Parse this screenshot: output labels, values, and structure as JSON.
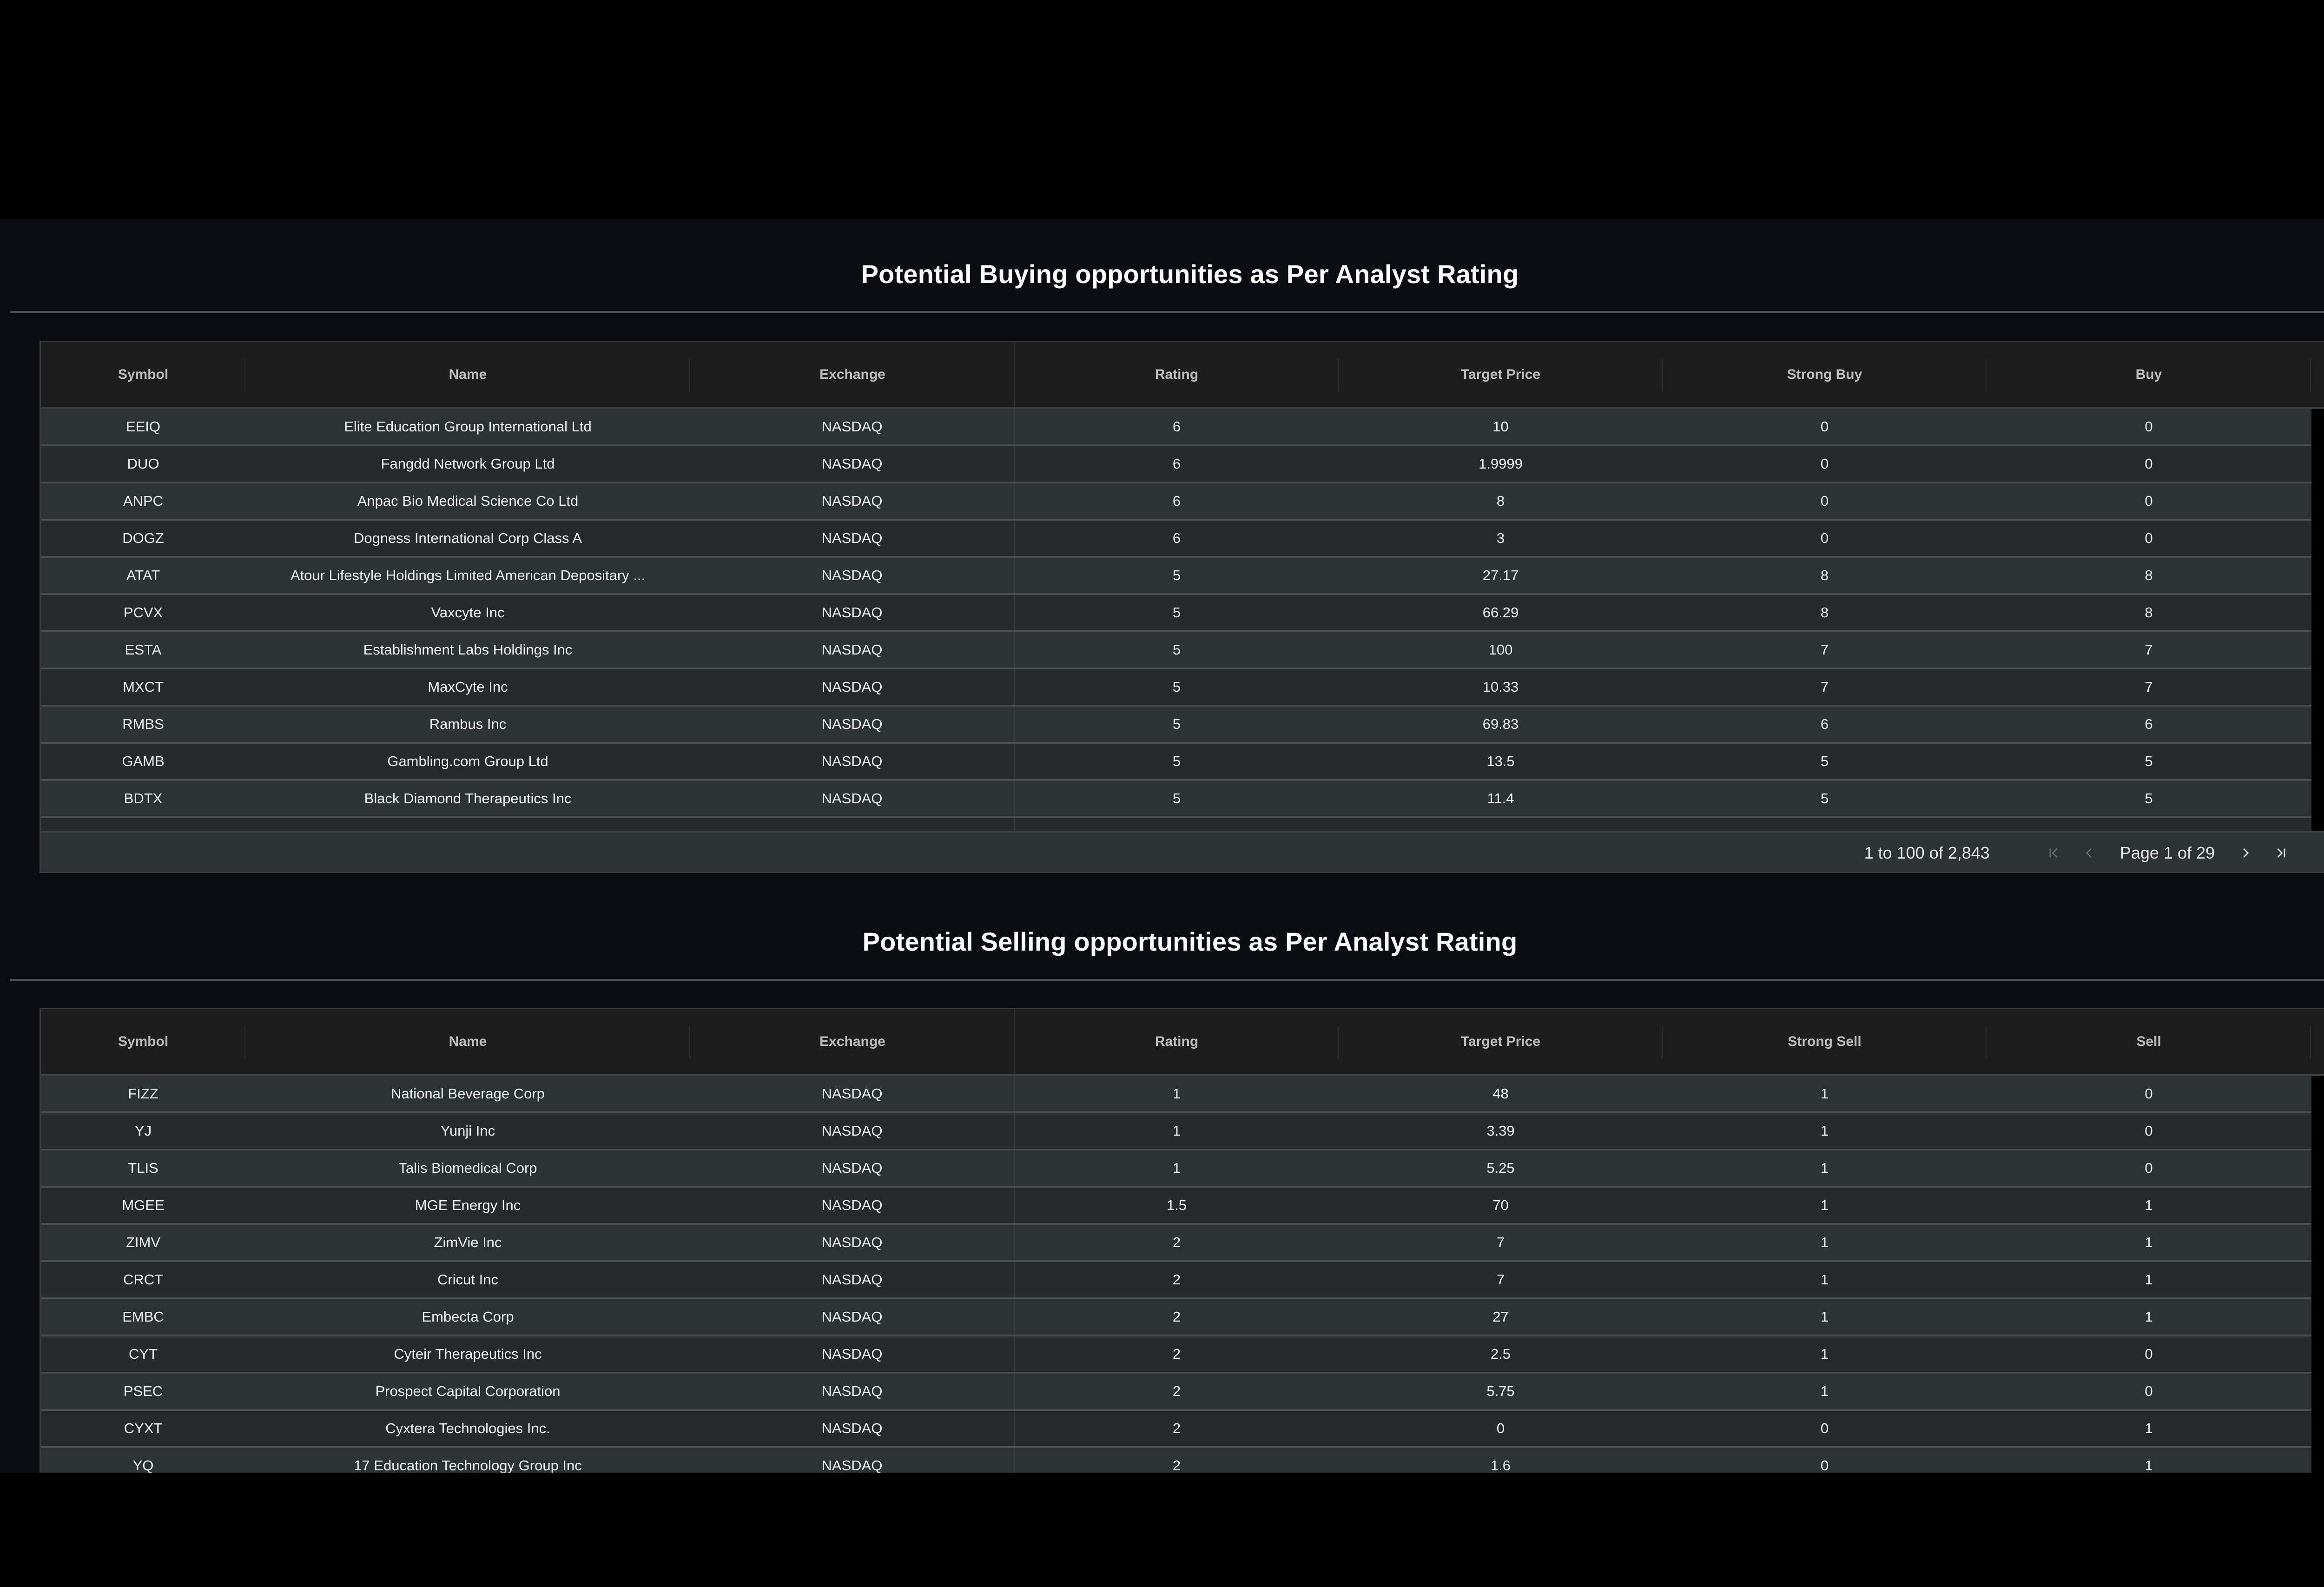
{
  "buy_section": {
    "title": "Potential Buying opportunities as Per Analyst Rating",
    "columns": [
      "Symbol",
      "Name",
      "Exchange",
      "Rating",
      "Target Price",
      "Strong Buy",
      "Buy"
    ],
    "rows": [
      {
        "symbol": "EEIQ",
        "name": "Elite Education Group International Ltd",
        "exchange": "NASDAQ",
        "rating": "6",
        "target_price": "10",
        "strong": "0",
        "other": "0"
      },
      {
        "symbol": "DUO",
        "name": "Fangdd Network Group Ltd",
        "exchange": "NASDAQ",
        "rating": "6",
        "target_price": "1.9999",
        "strong": "0",
        "other": "0"
      },
      {
        "symbol": "ANPC",
        "name": "Anpac Bio Medical Science Co Ltd",
        "exchange": "NASDAQ",
        "rating": "6",
        "target_price": "8",
        "strong": "0",
        "other": "0"
      },
      {
        "symbol": "DOGZ",
        "name": "Dogness International Corp Class A",
        "exchange": "NASDAQ",
        "rating": "6",
        "target_price": "3",
        "strong": "0",
        "other": "0"
      },
      {
        "symbol": "ATAT",
        "name": "Atour Lifestyle Holdings Limited American Depositary ...",
        "exchange": "NASDAQ",
        "rating": "5",
        "target_price": "27.17",
        "strong": "8",
        "other": "8"
      },
      {
        "symbol": "PCVX",
        "name": "Vaxcyte Inc",
        "exchange": "NASDAQ",
        "rating": "5",
        "target_price": "66.29",
        "strong": "8",
        "other": "8"
      },
      {
        "symbol": "ESTA",
        "name": "Establishment Labs Holdings Inc",
        "exchange": "NASDAQ",
        "rating": "5",
        "target_price": "100",
        "strong": "7",
        "other": "7"
      },
      {
        "symbol": "MXCT",
        "name": "MaxCyte Inc",
        "exchange": "NASDAQ",
        "rating": "5",
        "target_price": "10.33",
        "strong": "7",
        "other": "7"
      },
      {
        "symbol": "RMBS",
        "name": "Rambus Inc",
        "exchange": "NASDAQ",
        "rating": "5",
        "target_price": "69.83",
        "strong": "6",
        "other": "6"
      },
      {
        "symbol": "GAMB",
        "name": "Gambling.com Group Ltd",
        "exchange": "NASDAQ",
        "rating": "5",
        "target_price": "13.5",
        "strong": "5",
        "other": "5"
      },
      {
        "symbol": "BDTX",
        "name": "Black Diamond Therapeutics Inc",
        "exchange": "NASDAQ",
        "rating": "5",
        "target_price": "11.4",
        "strong": "5",
        "other": "5"
      }
    ],
    "pagination": {
      "summary": "1 to 100 of 2,843",
      "page_label": "Page 1 of 29",
      "first_icon": "first-page-icon",
      "prev_icon": "chevron-left-icon",
      "next_icon": "chevron-right-icon",
      "last_icon": "last-page-icon"
    }
  },
  "sell_section": {
    "title": "Potential Selling opportunities as Per Analyst Rating",
    "columns": [
      "Symbol",
      "Name",
      "Exchange",
      "Rating",
      "Target Price",
      "Strong Sell",
      "Sell"
    ],
    "rows": [
      {
        "symbol": "FIZZ",
        "name": "National Beverage Corp",
        "exchange": "NASDAQ",
        "rating": "1",
        "target_price": "48",
        "strong": "1",
        "other": "0"
      },
      {
        "symbol": "YJ",
        "name": "Yunji Inc",
        "exchange": "NASDAQ",
        "rating": "1",
        "target_price": "3.39",
        "strong": "1",
        "other": "0"
      },
      {
        "symbol": "TLIS",
        "name": "Talis Biomedical Corp",
        "exchange": "NASDAQ",
        "rating": "1",
        "target_price": "5.25",
        "strong": "1",
        "other": "0"
      },
      {
        "symbol": "MGEE",
        "name": "MGE Energy Inc",
        "exchange": "NASDAQ",
        "rating": "1.5",
        "target_price": "70",
        "strong": "1",
        "other": "1"
      },
      {
        "symbol": "ZIMV",
        "name": "ZimVie Inc",
        "exchange": "NASDAQ",
        "rating": "2",
        "target_price": "7",
        "strong": "1",
        "other": "1"
      },
      {
        "symbol": "CRCT",
        "name": "Cricut Inc",
        "exchange": "NASDAQ",
        "rating": "2",
        "target_price": "7",
        "strong": "1",
        "other": "1"
      },
      {
        "symbol": "EMBC",
        "name": "Embecta Corp",
        "exchange": "NASDAQ",
        "rating": "2",
        "target_price": "27",
        "strong": "1",
        "other": "1"
      },
      {
        "symbol": "CYT",
        "name": "Cyteir Therapeutics Inc",
        "exchange": "NASDAQ",
        "rating": "2",
        "target_price": "2.5",
        "strong": "1",
        "other": "0"
      },
      {
        "symbol": "PSEC",
        "name": "Prospect Capital Corporation",
        "exchange": "NASDAQ",
        "rating": "2",
        "target_price": "5.75",
        "strong": "1",
        "other": "0"
      },
      {
        "symbol": "CYXT",
        "name": "Cyxtera Technologies Inc.",
        "exchange": "NASDAQ",
        "rating": "2",
        "target_price": "0",
        "strong": "0",
        "other": "1"
      },
      {
        "symbol": "YQ",
        "name": "17 Education Technology Group Inc",
        "exchange": "NASDAQ",
        "rating": "2",
        "target_price": "1.6",
        "strong": "0",
        "other": "1"
      }
    ]
  },
  "colors": {
    "page_bg": "#0a0c12",
    "header_bg": "#1d1d1d",
    "row_bg": "#262a2d",
    "row_alt_bg": "#2d3335",
    "row_border": "#4a4e50",
    "text": "#f1f1f1",
    "header_text": "#bdbdbd",
    "disabled_icon": "#6b6f72"
  }
}
